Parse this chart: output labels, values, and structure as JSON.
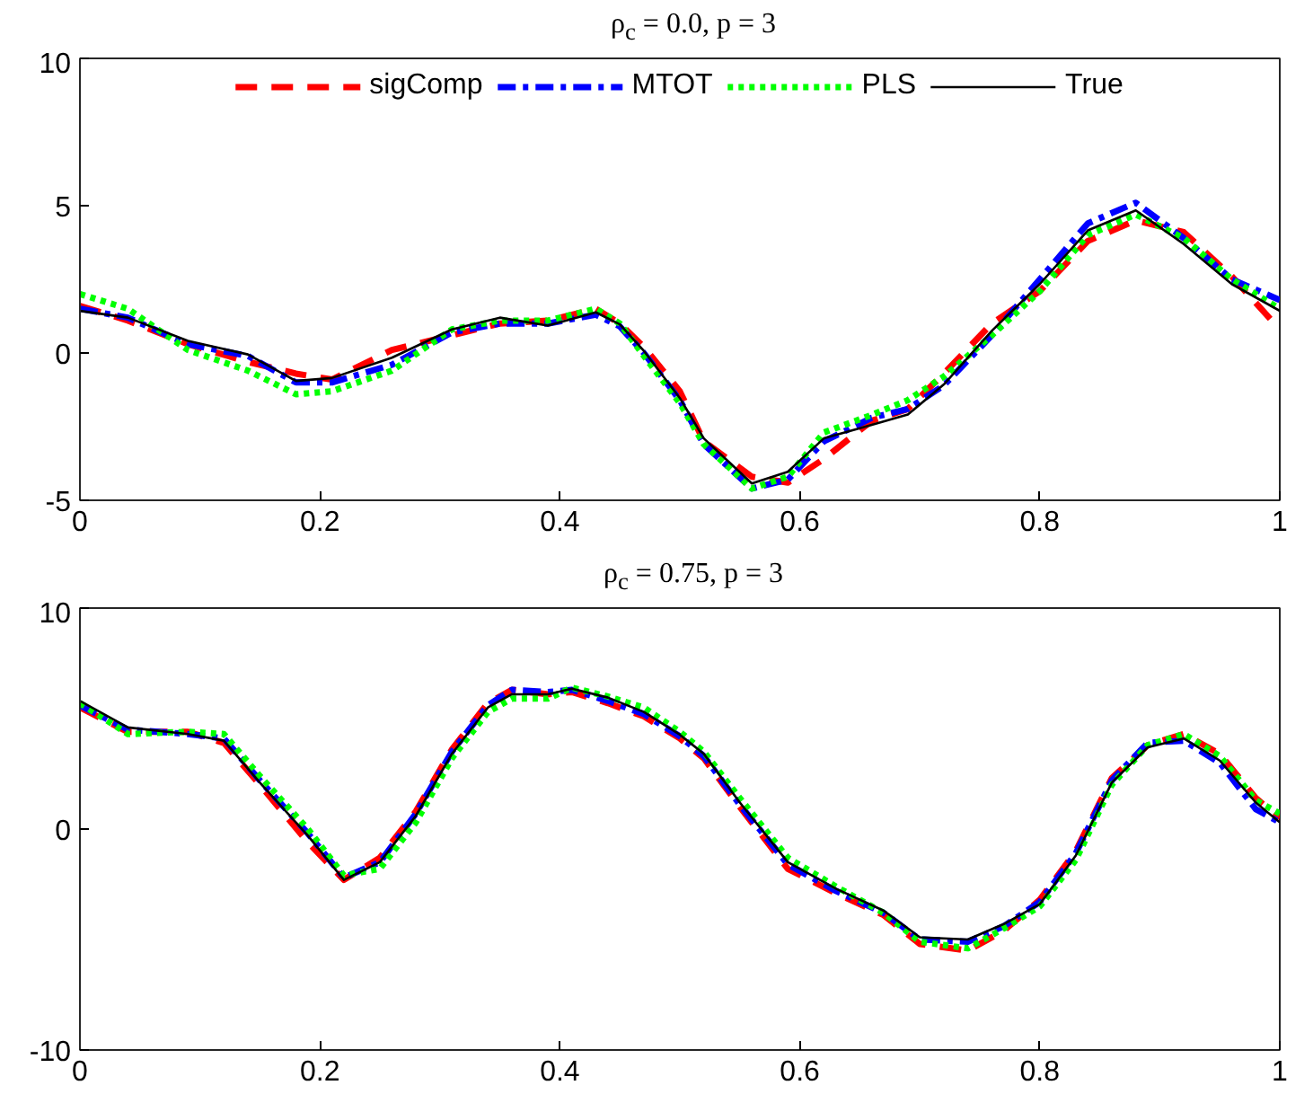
{
  "chart_data": [
    {
      "type": "line",
      "title": "ρ$_{c}$ = 0.0, p = 3",
      "x": [
        0,
        0.04,
        0.09,
        0.14,
        0.18,
        0.21,
        0.26,
        0.31,
        0.35,
        0.39,
        0.43,
        0.45,
        0.47,
        0.5,
        0.52,
        0.56,
        0.59,
        0.62,
        0.66,
        0.69,
        0.72,
        0.76,
        0.8,
        0.84,
        0.88,
        0.92,
        0.96,
        1.0
      ],
      "xlim": [
        0,
        1
      ],
      "xticks": [
        0,
        0.2,
        0.4,
        0.6,
        0.8,
        1
      ],
      "ylim": [
        -5,
        10
      ],
      "yticks": [
        -5,
        0,
        5,
        10
      ],
      "grid": false,
      "legend": "top",
      "series": [
        {
          "name": "sigComp",
          "color": "#ff0000",
          "line_style": "dashed",
          "values": [
            1.6,
            1.1,
            0.3,
            -0.3,
            -0.7,
            -0.9,
            0.1,
            0.6,
            1.0,
            1.1,
            1.5,
            1.0,
            0.2,
            -1.3,
            -3.0,
            -4.2,
            -4.4,
            -3.6,
            -2.3,
            -1.9,
            -0.7,
            1.0,
            2.1,
            3.8,
            4.5,
            4.1,
            2.6,
            0.8
          ]
        },
        {
          "name": "MTOT",
          "color": "#0000ff",
          "line_style": "dashdot",
          "values": [
            1.5,
            1.2,
            0.3,
            -0.1,
            -1.0,
            -1.0,
            -0.4,
            0.7,
            1.0,
            1.0,
            1.3,
            0.9,
            0.0,
            -1.6,
            -3.1,
            -4.6,
            -4.3,
            -3.0,
            -2.2,
            -1.9,
            -1.1,
            0.6,
            2.5,
            4.4,
            5.1,
            3.9,
            2.5,
            1.8
          ]
        },
        {
          "name": "PLS",
          "color": "#00ff00",
          "line_style": "dotted",
          "values": [
            2.0,
            1.5,
            0.1,
            -0.6,
            -1.4,
            -1.3,
            -0.6,
            0.8,
            1.1,
            1.1,
            1.5,
            1.0,
            -0.1,
            -1.7,
            -3.1,
            -4.6,
            -4.2,
            -2.7,
            -2.1,
            -1.6,
            -0.8,
            0.6,
            2.1,
            4.0,
            4.7,
            3.9,
            2.5,
            1.5
          ]
        },
        {
          "name": "True",
          "color": "#000000",
          "line_style": "solid",
          "values": [
            1.43,
            1.2,
            0.41,
            -0.05,
            -0.95,
            -0.85,
            -0.16,
            0.8,
            1.2,
            0.93,
            1.38,
            0.97,
            0.07,
            -1.53,
            -2.9,
            -4.43,
            -4.03,
            -2.9,
            -2.44,
            -2.09,
            -1.07,
            0.75,
            2.34,
            4.16,
            4.84,
            3.7,
            2.34,
            1.43
          ]
        }
      ]
    },
    {
      "type": "line",
      "title": "ρ$_{c}$ = 0.75, p = 3",
      "x": [
        0,
        0.04,
        0.09,
        0.12,
        0.15,
        0.19,
        0.22,
        0.25,
        0.28,
        0.31,
        0.34,
        0.36,
        0.39,
        0.41,
        0.44,
        0.47,
        0.5,
        0.52,
        0.55,
        0.59,
        0.63,
        0.67,
        0.7,
        0.74,
        0.77,
        0.8,
        0.83,
        0.86,
        0.89,
        0.92,
        0.95,
        0.98,
        1.0
      ],
      "xlim": [
        0,
        1
      ],
      "xticks": [
        0,
        0.2,
        0.4,
        0.6,
        0.8,
        1
      ],
      "ylim": [
        -10,
        10
      ],
      "yticks": [
        -10,
        0,
        10
      ],
      "grid": false,
      "series": [
        {
          "color": "#ff0000",
          "line_style": "dashed",
          "values": [
            5.5,
            4.4,
            4.4,
            3.9,
            2.0,
            -0.6,
            -2.3,
            -1.3,
            0.8,
            3.6,
            5.7,
            6.3,
            6.1,
            6.2,
            5.7,
            5.1,
            4.1,
            3.2,
            1.0,
            -1.8,
            -2.9,
            -3.9,
            -5.2,
            -5.5,
            -4.6,
            -3.2,
            -1.0,
            2.3,
            3.8,
            4.3,
            3.4,
            1.4,
            0.5
          ]
        },
        {
          "color": "#0000ff",
          "line_style": "dashdot",
          "values": [
            5.6,
            4.5,
            4.3,
            4.1,
            2.2,
            -0.2,
            -2.2,
            -1.5,
            0.7,
            3.5,
            5.6,
            6.3,
            6.2,
            6.3,
            5.8,
            5.2,
            4.2,
            3.3,
            1.1,
            -1.6,
            -2.8,
            -3.8,
            -5.0,
            -5.1,
            -4.4,
            -3.3,
            -1.1,
            2.2,
            3.9,
            4.0,
            3.0,
            0.9,
            0.3
          ]
        },
        {
          "color": "#00ff00",
          "line_style": "dotted",
          "values": [
            5.7,
            4.3,
            4.4,
            4.3,
            2.4,
            0.0,
            -2.1,
            -1.8,
            0.3,
            3.2,
            5.3,
            5.9,
            5.9,
            6.4,
            6.0,
            5.5,
            4.4,
            3.5,
            1.4,
            -1.3,
            -2.6,
            -3.8,
            -5.1,
            -5.4,
            -4.5,
            -3.5,
            -1.4,
            2.0,
            3.8,
            4.3,
            3.3,
            1.3,
            0.7
          ]
        },
        {
          "color": "#000000",
          "line_style": "solid",
          "values": [
            5.8,
            4.6,
            4.3,
            4.0,
            2.1,
            -0.3,
            -2.3,
            -1.5,
            0.6,
            3.4,
            5.5,
            6.1,
            6.1,
            6.35,
            5.95,
            5.3,
            4.27,
            3.4,
            1.2,
            -1.5,
            -2.7,
            -3.7,
            -4.9,
            -5.0,
            -4.3,
            -3.4,
            -1.2,
            2.1,
            3.7,
            4.1,
            3.1,
            1.2,
            0.3
          ]
        }
      ]
    }
  ]
}
